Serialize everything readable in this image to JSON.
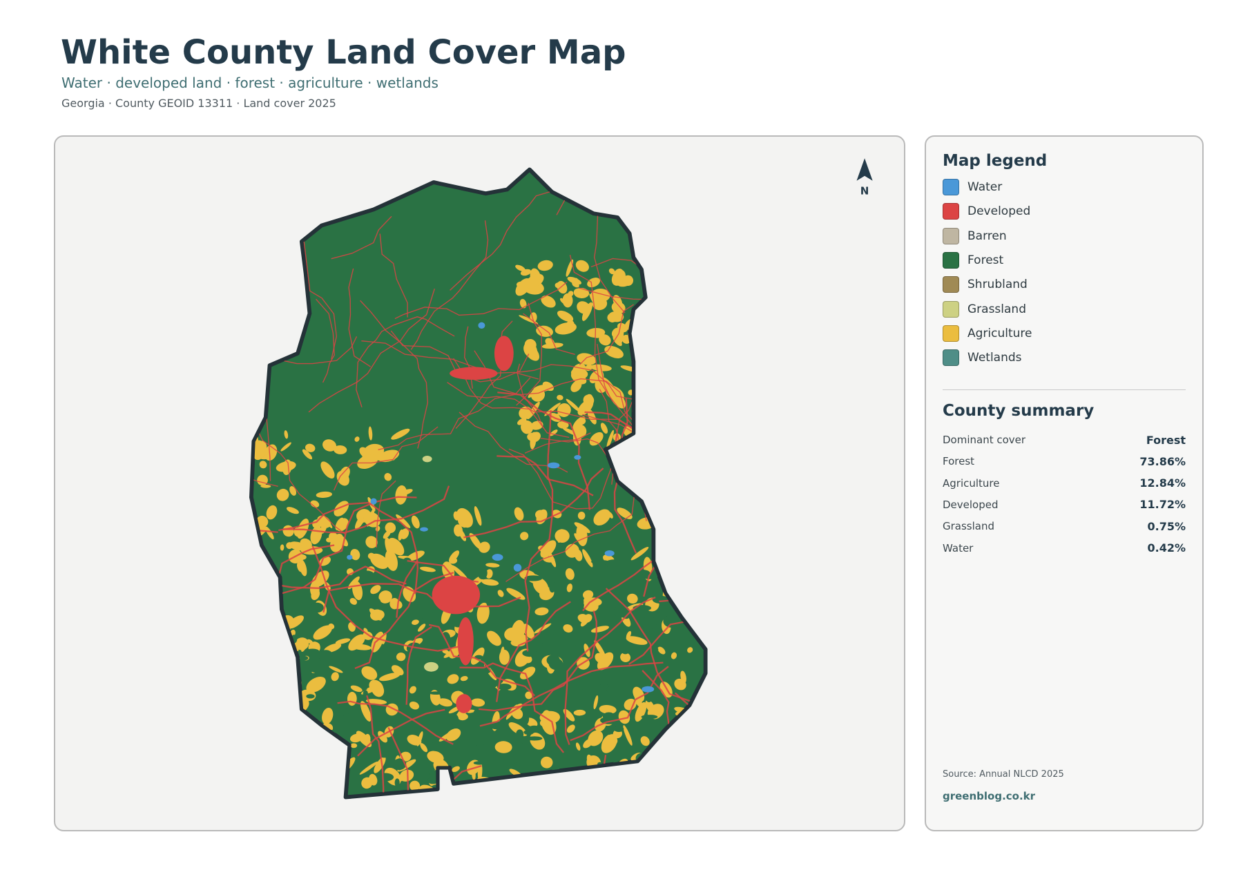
{
  "header": {
    "title": "White County Land Cover Map",
    "subtitle": "Water · developed land · forest · agriculture · wetlands",
    "meta": "Georgia · County GEOID 13311 · Land cover 2025"
  },
  "map": {
    "north_label": "N"
  },
  "legend": {
    "title": "Map legend",
    "items": [
      {
        "label": "Water",
        "color": "#4a98d8"
      },
      {
        "label": "Developed",
        "color": "#dc4444"
      },
      {
        "label": "Barren",
        "color": "#bfb6a2"
      },
      {
        "label": "Forest",
        "color": "#2a7244"
      },
      {
        "label": "Shrubland",
        "color": "#a08a55"
      },
      {
        "label": "Grassland",
        "color": "#cdd183"
      },
      {
        "label": "Agriculture",
        "color": "#ebbd3f"
      },
      {
        "label": "Wetlands",
        "color": "#4f8e87"
      }
    ]
  },
  "summary": {
    "title": "County summary",
    "rows": [
      [
        "Dominant cover",
        "Forest"
      ],
      [
        "Forest",
        "73.86%"
      ],
      [
        "Agriculture",
        "12.84%"
      ],
      [
        "Developed",
        "11.72%"
      ],
      [
        "Grassland",
        "0.75%"
      ],
      [
        "Water",
        "0.42%"
      ]
    ]
  },
  "footer": {
    "source": "Source: Annual NLCD 2025",
    "link": "greenblog.co.kr"
  }
}
